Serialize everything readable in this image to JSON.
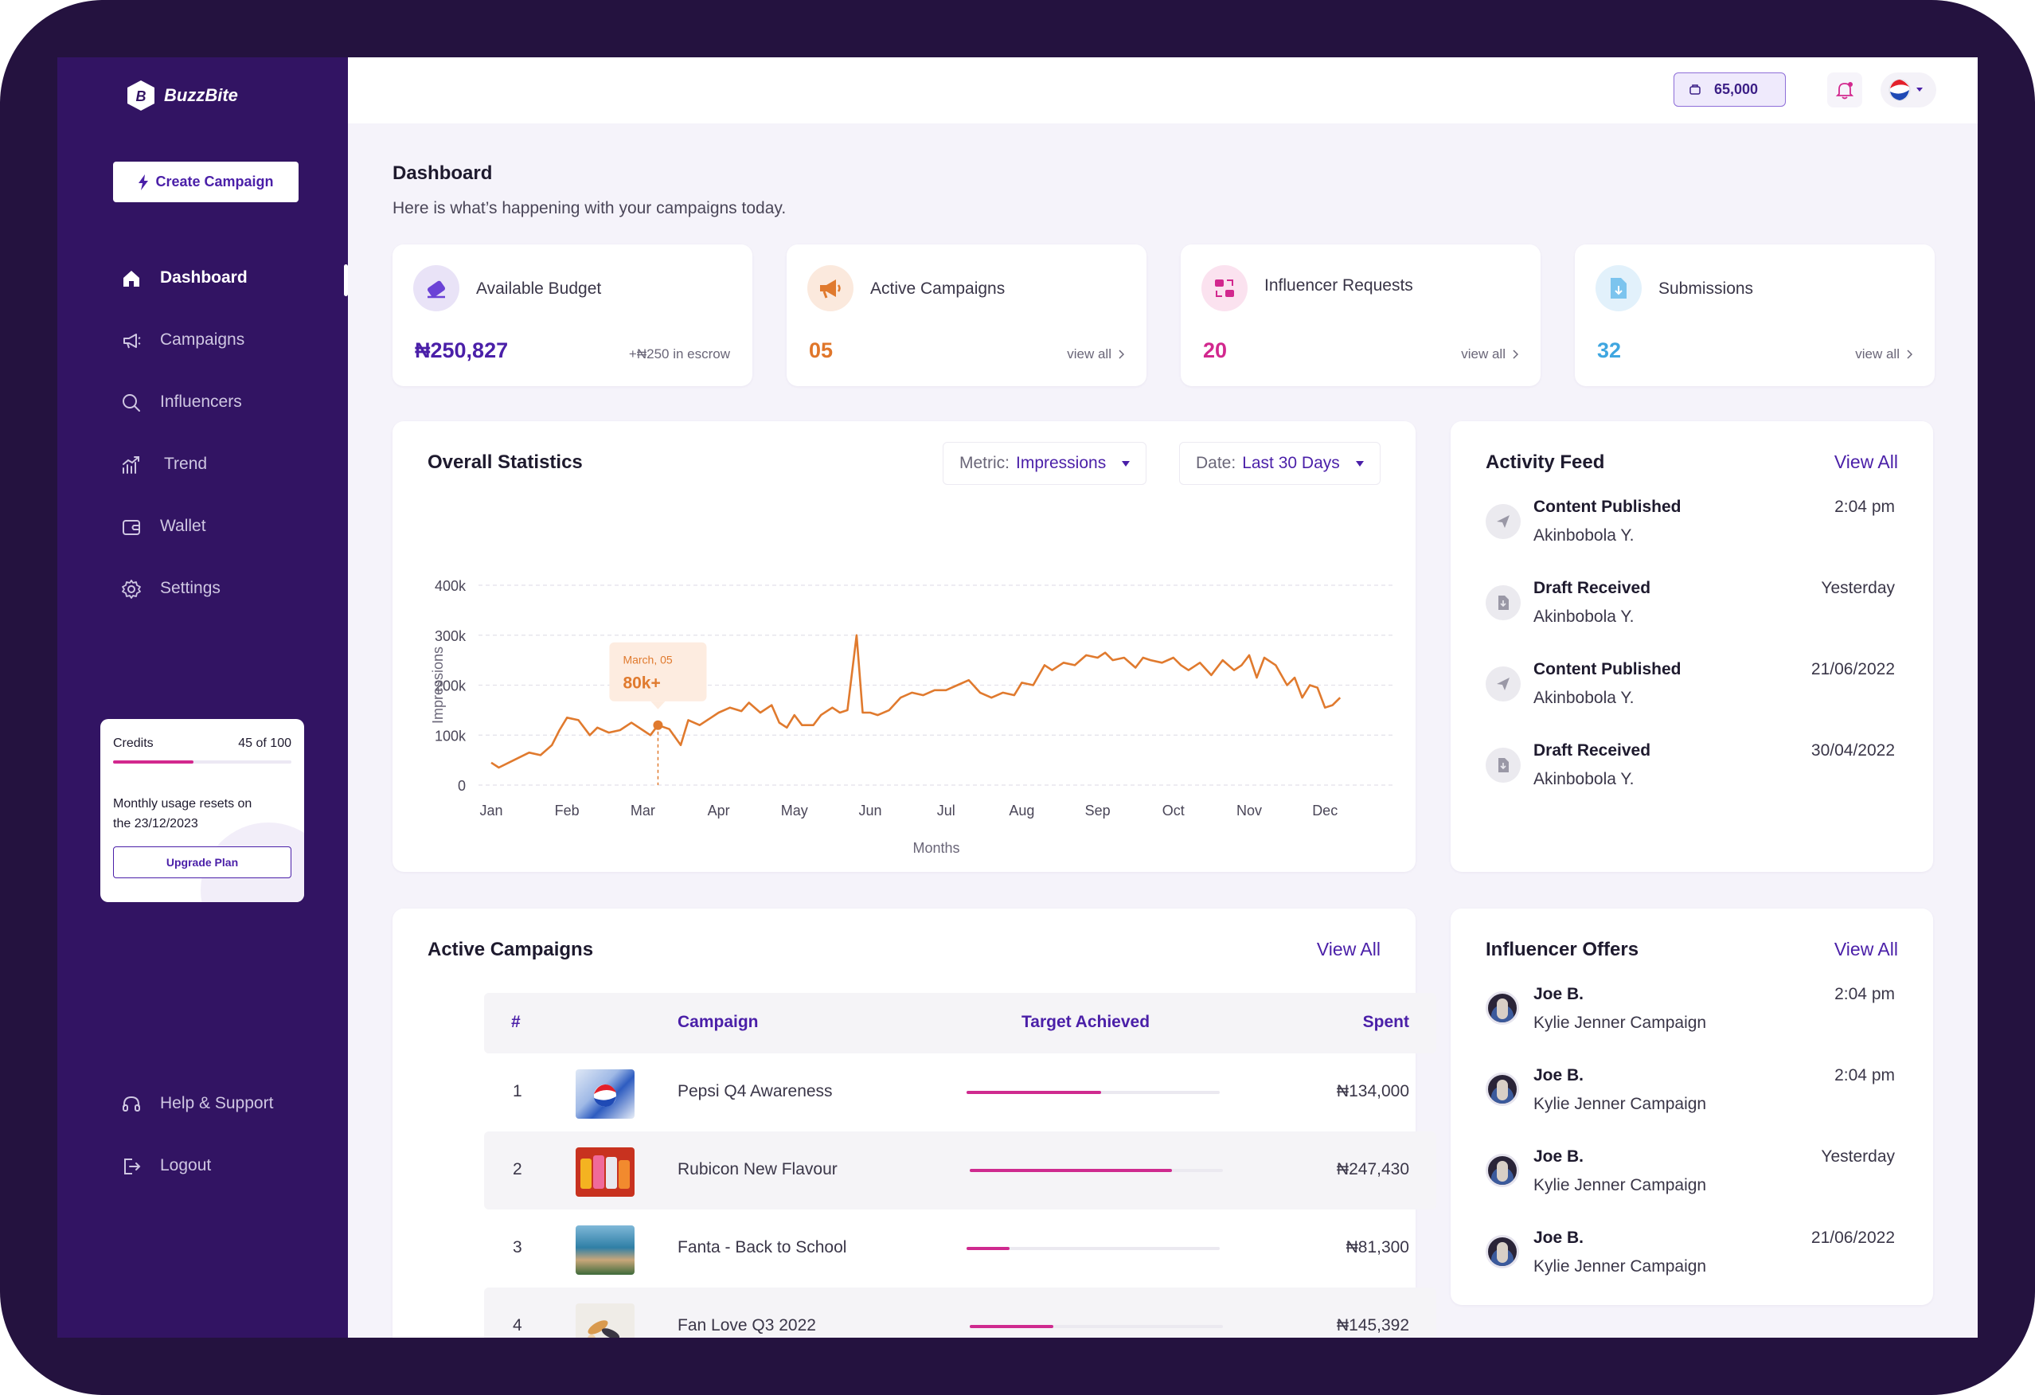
{
  "app": {
    "name": "BuzzBite"
  },
  "sidebar": {
    "create_label": "Create Campaign",
    "items": [
      {
        "label": "Dashboard",
        "icon": "home-icon",
        "active": true
      },
      {
        "label": "Campaigns",
        "icon": "megaphone-icon"
      },
      {
        "label": "Influencers",
        "icon": "search-icon"
      },
      {
        "label": "Trend",
        "icon": "trend-icon"
      },
      {
        "label": "Wallet",
        "icon": "wallet-icon"
      },
      {
        "label": "Settings",
        "icon": "gear-icon"
      }
    ],
    "bottom_items": [
      {
        "label": "Help & Support",
        "icon": "headset-icon"
      },
      {
        "label": "Logout",
        "icon": "logout-icon"
      }
    ],
    "credits": {
      "label": "Credits",
      "usage": "45 of 100",
      "used_fraction": 0.45,
      "reset_text_1": "Monthly usage resets on",
      "reset_text_2": "the 23/12/2023",
      "upgrade_label": "Upgrade Plan"
    }
  },
  "topbar": {
    "balance": "65,000"
  },
  "header": {
    "title": "Dashboard",
    "subtitle": "Here is what’s happening with your campaigns today."
  },
  "stats": [
    {
      "label": "Available Budget",
      "value": "₦250,827",
      "side": "+₦250 in escrow",
      "color": "#4a1fa8"
    },
    {
      "label": "Active Campaigns",
      "value": "05",
      "side": "view all",
      "color": "#e0762a"
    },
    {
      "label": "Influencer Requests",
      "value": "20",
      "side": "view all",
      "color": "#d2288e"
    },
    {
      "label": "Submissions",
      "value": "32",
      "side": "view all",
      "color": "#3fa6e0"
    }
  ],
  "statistics": {
    "title": "Overall Statistics",
    "metric_label": "Metric:",
    "metric_value": "Impressions",
    "date_label": "Date:",
    "date_value": "Last 30 Days",
    "tooltip_date": "March, 05",
    "tooltip_value": "80k+"
  },
  "chart_data": {
    "type": "line",
    "ylabel": "Impressions",
    "xlabel": "Months",
    "ylim": [
      0,
      400000
    ],
    "yticks": [
      "0",
      "100k",
      "200k",
      "300k",
      "400k"
    ],
    "categories": [
      "Jan",
      "Feb",
      "Mar",
      "Apr",
      "May",
      "Jun",
      "Jul",
      "Aug",
      "Sep",
      "Oct",
      "Nov",
      "Dec"
    ],
    "grid": true,
    "line_color": "#e07a2e",
    "x": [
      0,
      0.1,
      0.3,
      0.5,
      0.65,
      0.8,
      0.9,
      1.0,
      1.15,
      1.3,
      1.4,
      1.55,
      1.7,
      1.85,
      2.0,
      2.1,
      2.2,
      2.35,
      2.5,
      2.6,
      2.75,
      2.9,
      3.0,
      3.15,
      3.3,
      3.4,
      3.55,
      3.7,
      3.8,
      3.9,
      4.0,
      4.1,
      4.25,
      4.35,
      4.5,
      4.6,
      4.7,
      4.82,
      4.9,
      4.95,
      5.0,
      5.1,
      5.25,
      5.4,
      5.55,
      5.7,
      5.85,
      6.0,
      6.15,
      6.3,
      6.45,
      6.6,
      6.75,
      6.9,
      7.0,
      7.15,
      7.3,
      7.4,
      7.55,
      7.7,
      7.85,
      8.0,
      8.1,
      8.2,
      8.35,
      8.5,
      8.6,
      8.7,
      8.85,
      9.0,
      9.1,
      9.2,
      9.35,
      9.5,
      9.65,
      9.8,
      9.9,
      10.0,
      10.1,
      10.2,
      10.35,
      10.5,
      10.6,
      10.7,
      10.8,
      10.9,
      11.0,
      11.1,
      11.2
    ],
    "values": [
      45000,
      35000,
      50000,
      65000,
      60000,
      80000,
      110000,
      135000,
      130000,
      100000,
      115000,
      105000,
      110000,
      125000,
      110000,
      100000,
      120000,
      112000,
      80000,
      130000,
      120000,
      135000,
      145000,
      155000,
      148000,
      165000,
      145000,
      160000,
      125000,
      115000,
      140000,
      120000,
      120000,
      140000,
      155000,
      145000,
      150000,
      300000,
      145000,
      145000,
      145000,
      140000,
      150000,
      175000,
      185000,
      180000,
      190000,
      190000,
      200000,
      210000,
      185000,
      175000,
      185000,
      180000,
      205000,
      200000,
      240000,
      230000,
      245000,
      240000,
      260000,
      255000,
      265000,
      250000,
      255000,
      235000,
      255000,
      250000,
      245000,
      255000,
      240000,
      230000,
      245000,
      220000,
      250000,
      230000,
      240000,
      260000,
      215000,
      255000,
      240000,
      200000,
      215000,
      175000,
      200000,
      195000,
      155000,
      160000,
      175000
    ],
    "tooltip_point": {
      "x": 2.2,
      "y": 120000
    }
  },
  "activity_feed": {
    "title": "Activity Feed",
    "view_all": "View All",
    "items": [
      {
        "title": "Content Published",
        "user": "Akinbobola Y.",
        "time": "2:04 pm",
        "icon": "send-icon"
      },
      {
        "title": "Draft Received",
        "user": "Akinbobola Y.",
        "time": "Yesterday",
        "icon": "document-download-icon"
      },
      {
        "title": "Content Published",
        "user": "Akinbobola Y.",
        "time": "21/06/2022",
        "icon": "send-icon"
      },
      {
        "title": "Draft Received",
        "user": "Akinbobola Y.",
        "time": "30/04/2022",
        "icon": "document-download-icon"
      }
    ]
  },
  "active_campaigns": {
    "title": "Active Campaigns",
    "view_all": "View All",
    "headers": {
      "num": "#",
      "campaign": "Campaign",
      "target": "Target Achieved",
      "spent": "Spent"
    },
    "rows": [
      {
        "num": "1",
        "name": "Pepsi Q4 Awareness",
        "target": 0.53,
        "spent": "₦134,000"
      },
      {
        "num": "2",
        "name": "Rubicon New Flavour",
        "target": 0.8,
        "spent": "₦247,430"
      },
      {
        "num": "3",
        "name": "Fanta - Back to School",
        "target": 0.17,
        "spent": "₦81,300"
      },
      {
        "num": "4",
        "name": "Fan Love Q3 2022",
        "target": 0.33,
        "spent": "₦145,392"
      }
    ]
  },
  "influencer_offers": {
    "title": "Influencer Offers",
    "view_all": "View All",
    "items": [
      {
        "name": "Joe B.",
        "campaign": "Kylie Jenner Campaign",
        "time": "2:04 pm"
      },
      {
        "name": "Joe B.",
        "campaign": "Kylie Jenner Campaign",
        "time": "2:04 pm"
      },
      {
        "name": "Joe B.",
        "campaign": "Kylie Jenner Campaign",
        "time": "Yesterday"
      },
      {
        "name": "Joe B.",
        "campaign": "Kylie Jenner Campaign",
        "time": "21/06/2022"
      }
    ]
  }
}
